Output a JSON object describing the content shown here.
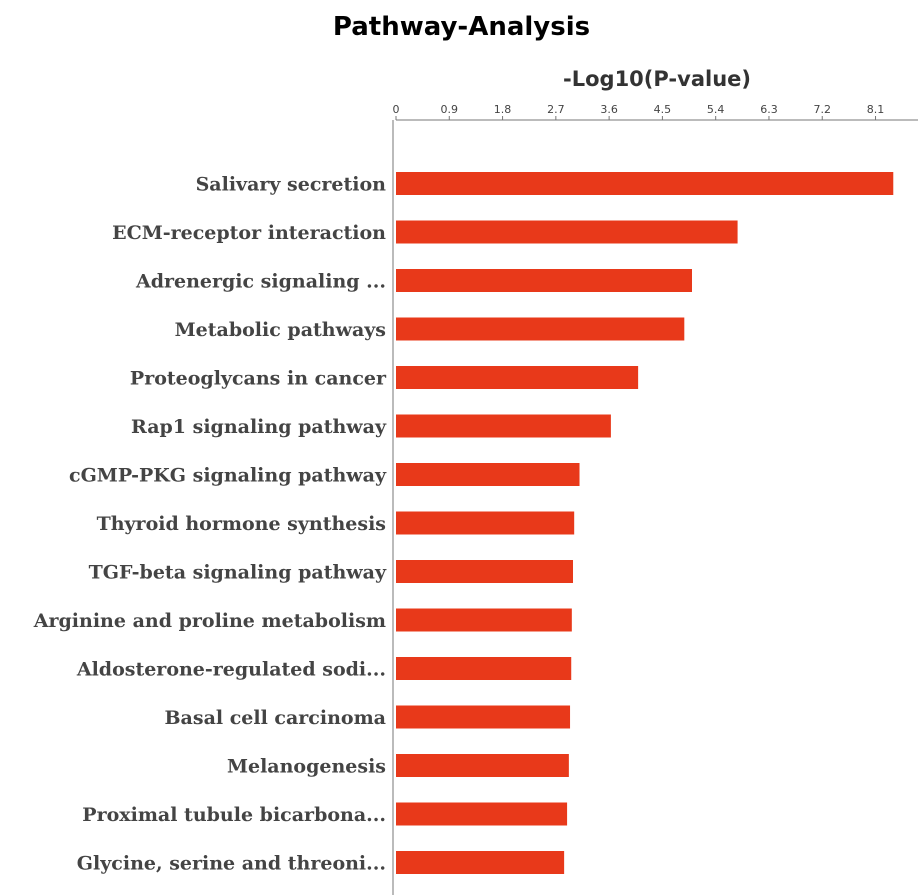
{
  "chart_data": {
    "type": "bar",
    "orientation": "horizontal",
    "title": "Pathway-Analysis",
    "xlabel": "-Log10(P-value)",
    "ylabel": "",
    "xlim": [
      0,
      8.8
    ],
    "ticks": [
      "0",
      "0.9",
      "1.8",
      "2.7",
      "3.6",
      "4.5",
      "5.4",
      "6.3",
      "7.2",
      "8.1"
    ],
    "tick_values": [
      0,
      0.9,
      1.8,
      2.7,
      3.6,
      4.5,
      5.4,
      6.3,
      7.2,
      8.1
    ],
    "bar_color": "#e8391a",
    "axis_position": "top",
    "grid": false,
    "categories": [
      "Salivary secretion",
      "ECM-receptor interaction",
      "Adrenergic signaling ...",
      "Metabolic pathways",
      "Proteoglycans in cancer",
      "Rap1 signaling pathway",
      "cGMP-PKG signaling pathway",
      "Thyroid hormone synthesis",
      "TGF-beta signaling pathway",
      "Arginine and proline metabolism",
      "Aldosterone-regulated sodi...",
      "Basal cell carcinoma",
      "Melanogenesis",
      "Proximal tubule bicarbona...",
      "Glycine, serine and threoni..."
    ],
    "values": [
      8.4,
      5.77,
      5.0,
      4.87,
      4.09,
      3.63,
      3.1,
      3.01,
      2.99,
      2.97,
      2.96,
      2.94,
      2.92,
      2.89,
      2.84
    ]
  }
}
